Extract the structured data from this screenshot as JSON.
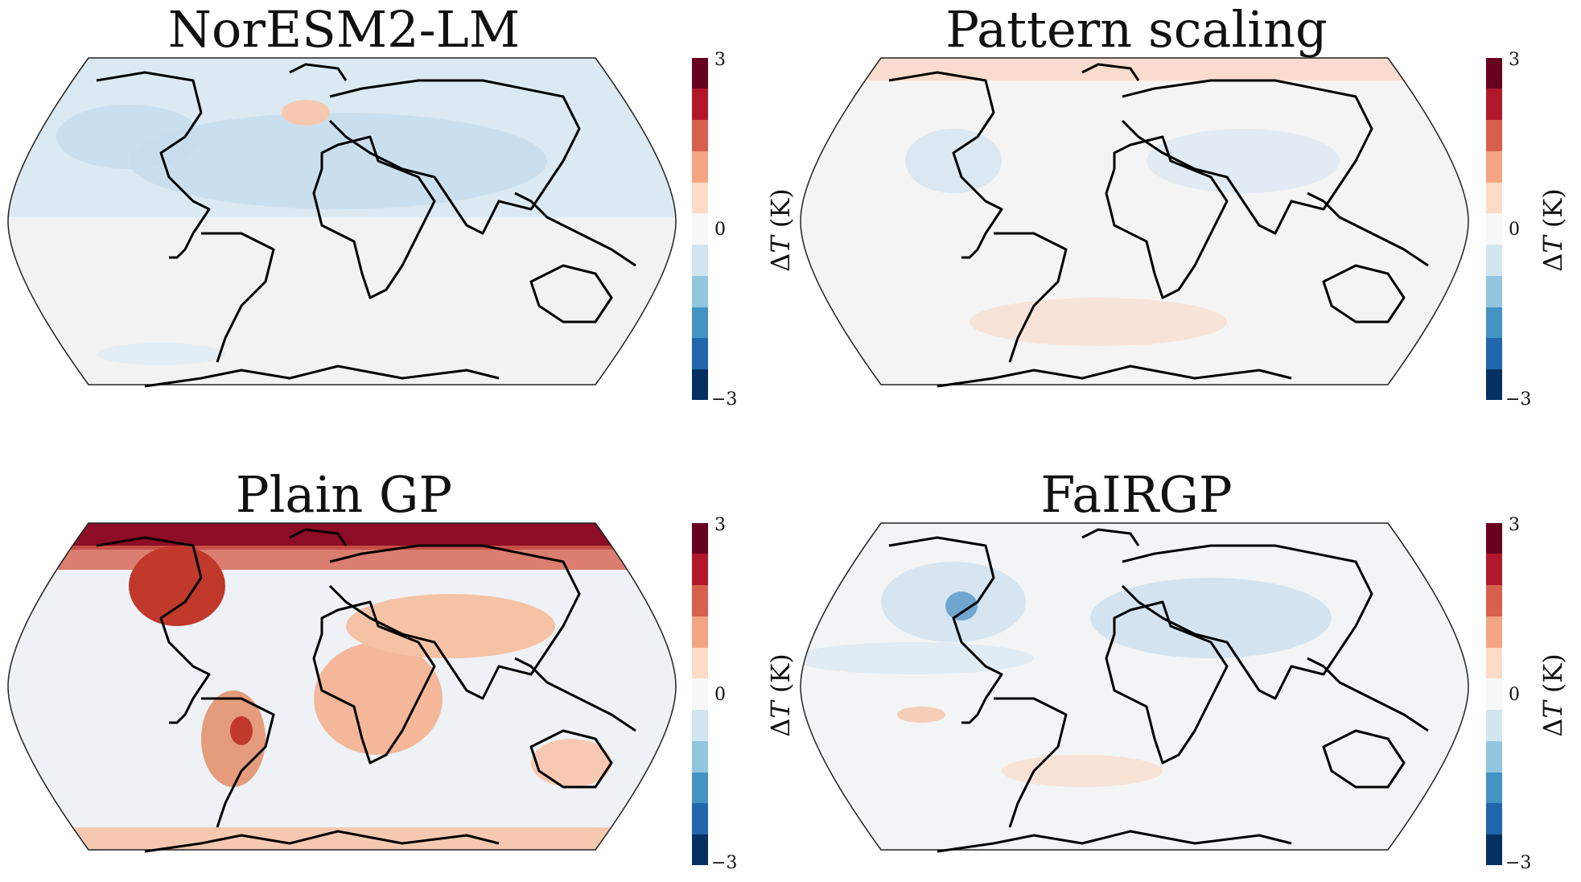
{
  "figure": {
    "panels": [
      {
        "id": "noresm",
        "title": "NorESM2-LM",
        "colorbar": {
          "max_label": "3",
          "mid_label": "0",
          "min_label": "−3",
          "label_delta": "Δ",
          "label_var": "T",
          "label_unit": " (K)"
        }
      },
      {
        "id": "pattern",
        "title": "Pattern scaling",
        "colorbar": {
          "max_label": "3",
          "mid_label": "0",
          "min_label": "−3",
          "label_delta": "Δ",
          "label_var": "T",
          "label_unit": " (K)"
        }
      },
      {
        "id": "plaingp",
        "title": "Plain GP",
        "colorbar": {
          "max_label": "3",
          "mid_label": "0",
          "min_label": "−3",
          "label_delta": "Δ",
          "label_var": "T",
          "label_unit": " (K)"
        }
      },
      {
        "id": "fairgp",
        "title": "FaIRGP",
        "colorbar": {
          "max_label": "3",
          "mid_label": "0",
          "min_label": "−3",
          "label_delta": "Δ",
          "label_var": "T",
          "label_unit": " (K)"
        }
      }
    ],
    "colormap": [
      "#053061",
      "#2166ac",
      "#4393c3",
      "#92c5de",
      "#d1e5f0",
      "#f7f7f7",
      "#fddbc7",
      "#f4a582",
      "#d6604d",
      "#b2182b",
      "#67001f"
    ],
    "colorbar_range": [
      -3,
      3
    ]
  }
}
